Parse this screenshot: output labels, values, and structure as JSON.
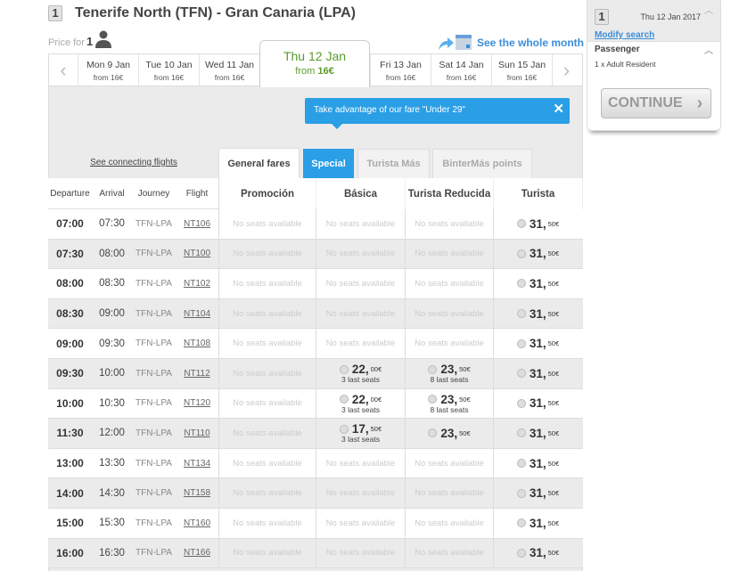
{
  "header": {
    "step": "1",
    "title": "Tenerife North (TFN) - Gran Canaria (LPA)",
    "price_for_label": "Price for",
    "passengers": "1",
    "whole_month": "See the whole month"
  },
  "dates": [
    {
      "day": "Mon 9 Jan",
      "from": "from 16€"
    },
    {
      "day": "Tue 10 Jan",
      "from": "from 16€"
    },
    {
      "day": "Wed 11 Jan",
      "from": "from 16€"
    },
    {
      "day": "Thu 12 Jan",
      "from_label": "from",
      "from_price": "16€",
      "selected": true
    },
    {
      "day": "Fri 13 Jan",
      "from": "from 16€"
    },
    {
      "day": "Sat 14 Jan",
      "from": "from 16€"
    },
    {
      "day": "Sun 15 Jan",
      "from": "from 16€"
    }
  ],
  "tooltip": {
    "text": "Take advantage of our fare \"Under 29\"",
    "close": "✕"
  },
  "connecting": "See connecting flights",
  "tabs": [
    "General fares",
    "Special",
    "Turista Más",
    "BinterMás points"
  ],
  "columns": {
    "left": [
      "Departure",
      "Arrival",
      "Journey",
      "Flight"
    ],
    "fares": [
      "Promoción",
      "Básica",
      "Turista Reducida",
      "Turista"
    ]
  },
  "no_seats": "No seats available",
  "rows": [
    {
      "dep": "07:00",
      "arr": "07:30",
      "journey": "TFN-LPA",
      "flight": "NT106",
      "fares": [
        null,
        null,
        null,
        {
          "int": "31,",
          "dec": "50€"
        }
      ]
    },
    {
      "dep": "07:30",
      "arr": "08:00",
      "journey": "TFN-LPA",
      "flight": "NT100",
      "fares": [
        null,
        null,
        null,
        {
          "int": "31,",
          "dec": "50€"
        }
      ]
    },
    {
      "dep": "08:00",
      "arr": "08:30",
      "journey": "TFN-LPA",
      "flight": "NT102",
      "fares": [
        null,
        null,
        null,
        {
          "int": "31,",
          "dec": "50€"
        }
      ]
    },
    {
      "dep": "08:30",
      "arr": "09:00",
      "journey": "TFN-LPA",
      "flight": "NT104",
      "fares": [
        null,
        null,
        null,
        {
          "int": "31,",
          "dec": "50€"
        }
      ]
    },
    {
      "dep": "09:00",
      "arr": "09:30",
      "journey": "TFN-LPA",
      "flight": "NT108",
      "fares": [
        null,
        null,
        null,
        {
          "int": "31,",
          "dec": "50€"
        }
      ]
    },
    {
      "dep": "09:30",
      "arr": "10:00",
      "journey": "TFN-LPA",
      "flight": "NT112",
      "fares": [
        null,
        {
          "int": "22,",
          "dec": "00€",
          "seats": "3 last seats"
        },
        {
          "int": "23,",
          "dec": "50€",
          "seats": "8 last seats"
        },
        {
          "int": "31,",
          "dec": "50€"
        }
      ]
    },
    {
      "dep": "10:00",
      "arr": "10:30",
      "journey": "TFN-LPA",
      "flight": "NT120",
      "fares": [
        null,
        {
          "int": "22,",
          "dec": "00€",
          "seats": "3 last seats"
        },
        {
          "int": "23,",
          "dec": "50€",
          "seats": "8 last seats"
        },
        {
          "int": "31,",
          "dec": "50€"
        }
      ]
    },
    {
      "dep": "11:30",
      "arr": "12:00",
      "journey": "TFN-LPA",
      "flight": "NT110",
      "fares": [
        null,
        {
          "int": "17,",
          "dec": "50€",
          "seats": "3 last seats"
        },
        {
          "int": "23,",
          "dec": "50€"
        },
        {
          "int": "31,",
          "dec": "50€"
        }
      ]
    },
    {
      "dep": "13:00",
      "arr": "13:30",
      "journey": "TFN-LPA",
      "flight": "NT134",
      "fares": [
        null,
        null,
        null,
        {
          "int": "31,",
          "dec": "50€"
        }
      ]
    },
    {
      "dep": "14:00",
      "arr": "14:30",
      "journey": "TFN-LPA",
      "flight": "NT158",
      "fares": [
        null,
        null,
        null,
        {
          "int": "31,",
          "dec": "50€"
        }
      ]
    },
    {
      "dep": "15:00",
      "arr": "15:30",
      "journey": "TFN-LPA",
      "flight": "NT160",
      "fares": [
        null,
        null,
        null,
        {
          "int": "31,",
          "dec": "50€"
        }
      ]
    },
    {
      "dep": "16:00",
      "arr": "16:30",
      "journey": "TFN-LPA",
      "flight": "NT166",
      "fares": [
        null,
        null,
        null,
        {
          "int": "31,",
          "dec": "50€"
        }
      ]
    }
  ],
  "sidebar": {
    "step": "1",
    "date": "Thu 12 Jan 2017",
    "modify": "Modify search",
    "passenger_title": "Passenger",
    "passenger_value": "1 x Adult Resident",
    "continue": "CONTINUE",
    "continue_arrow": "›"
  },
  "colors": {
    "accent": "#2a9fe6",
    "selected_date": "#5a9a2a",
    "link": "#3a8ed8"
  }
}
